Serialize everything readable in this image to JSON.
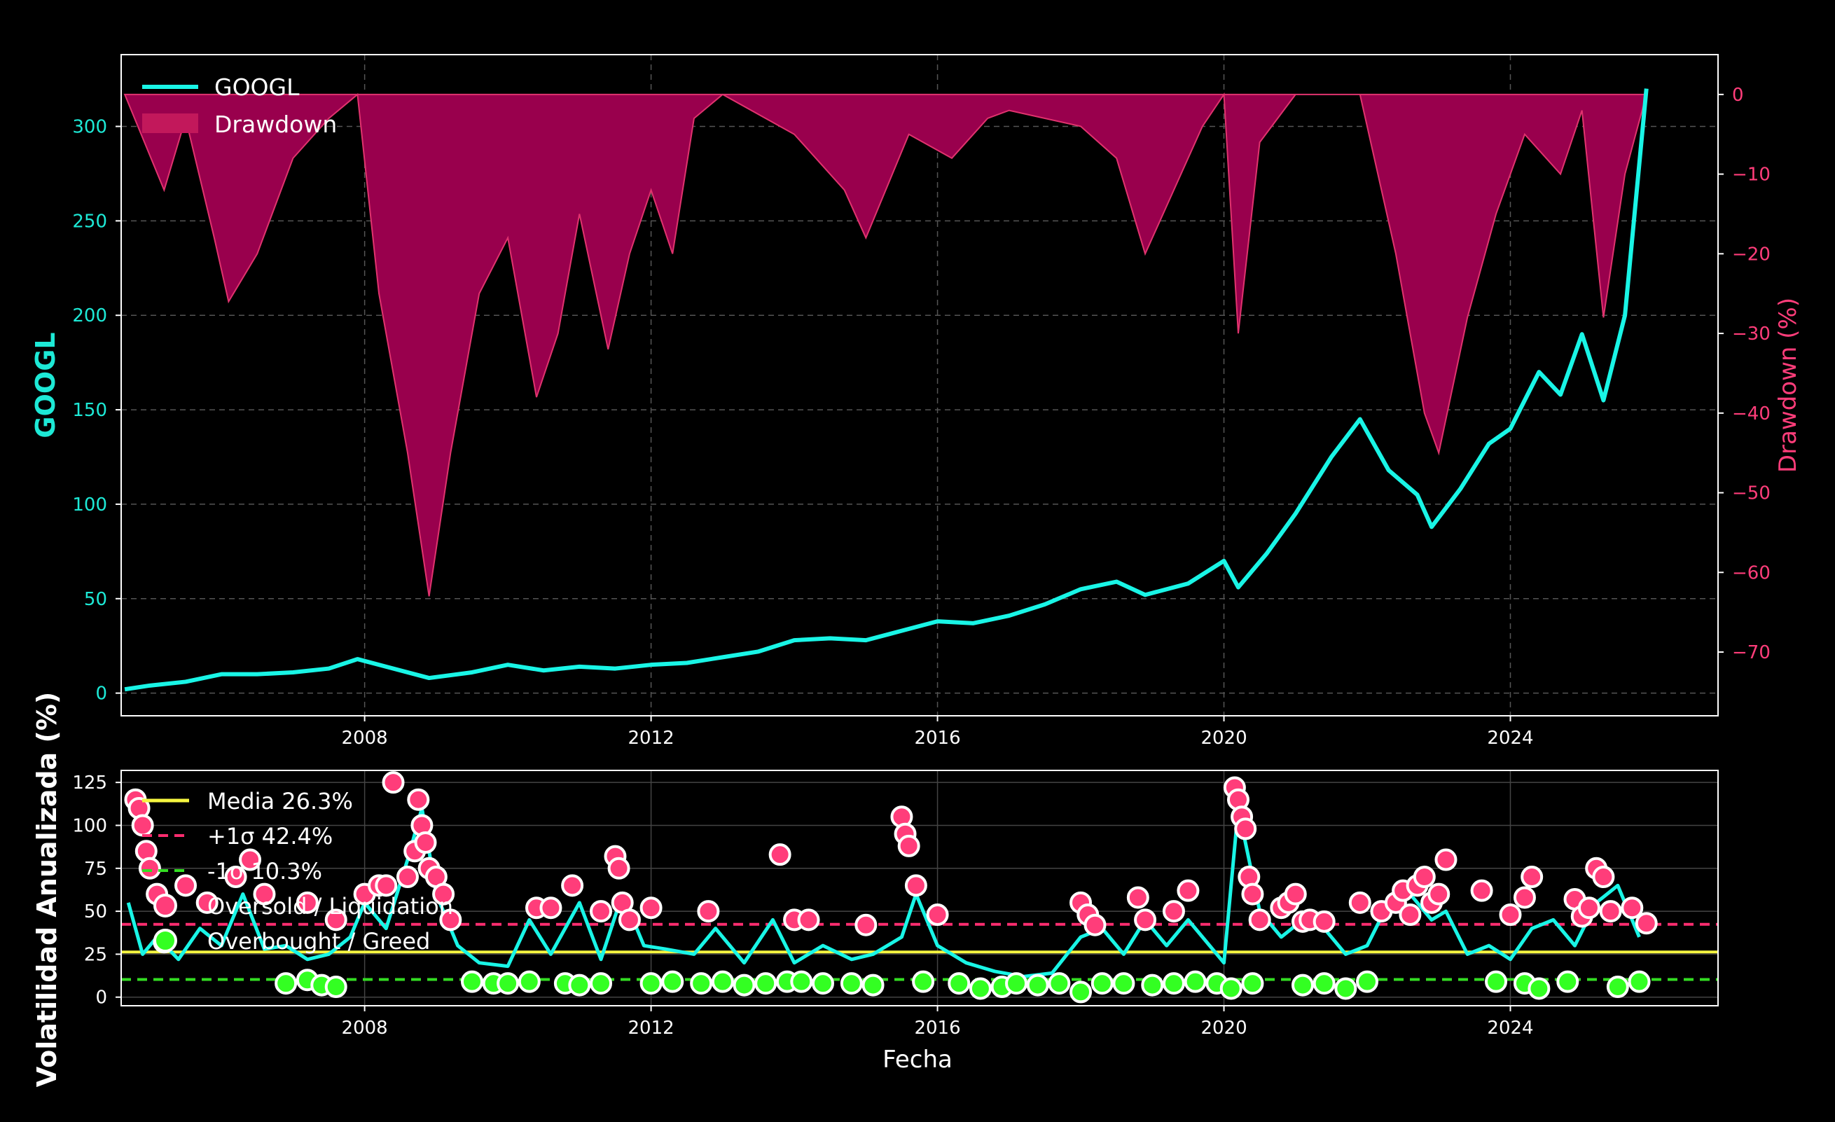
{
  "colors": {
    "background": "#000000",
    "price_line": "#19f5e6",
    "drawdown_fill": "#99004d",
    "drawdown_line": "#e0336e",
    "axis_frame": "#ffffff",
    "grid": "#555555",
    "mean_line": "#f5f540",
    "plus_sigma_line": "#ff2d6f",
    "minus_sigma_line": "#33dd22",
    "oversold_marker": "#ff3d7a",
    "overbought_marker": "#33ff22",
    "left_axis_label": "#1de9d6",
    "right_axis_label": "#ff3d7a"
  },
  "chart_data": [
    {
      "type": "line",
      "title": "",
      "xlabel": "",
      "ylabel": "GOOGL",
      "y2label": "Drawdown (%)",
      "xlim": [
        2004.6,
        2026.9
      ],
      "ylim": [
        -12,
        338
      ],
      "y2lim": [
        -78,
        5
      ],
      "x_ticks": [
        "2008",
        "2012",
        "2016",
        "2020",
        "2024"
      ],
      "y_ticks": [
        "0",
        "50",
        "100",
        "150",
        "200",
        "250",
        "300"
      ],
      "y2_ticks": [
        "0",
        "−10",
        "−20",
        "−30",
        "−40",
        "−50",
        "−60",
        "−70"
      ],
      "legend": {
        "position": "top-left",
        "entries": [
          "GOOGL",
          "Drawdown"
        ]
      },
      "grid": true,
      "series": [
        {
          "name": "GOOGL",
          "x": [
            2004.65,
            2005.0,
            2005.5,
            2006.0,
            2006.5,
            2007.0,
            2007.5,
            2007.9,
            2008.3,
            2008.9,
            2009.5,
            2010.0,
            2010.5,
            2011.0,
            2011.5,
            2012.0,
            2012.5,
            2013.0,
            2013.5,
            2014.0,
            2014.5,
            2015.0,
            2015.5,
            2016.0,
            2016.5,
            2017.0,
            2017.5,
            2018.0,
            2018.5,
            2018.9,
            2019.5,
            2020.0,
            2020.2,
            2020.6,
            2021.0,
            2021.5,
            2021.9,
            2022.3,
            2022.7,
            2022.9,
            2023.3,
            2023.7,
            2024.0,
            2024.4,
            2024.7,
            2025.0,
            2025.3,
            2025.6,
            2025.9
          ],
          "values": [
            2,
            4,
            6,
            10,
            10,
            11,
            13,
            18,
            14,
            8,
            11,
            15,
            12,
            14,
            13,
            15,
            16,
            19,
            22,
            28,
            29,
            28,
            33,
            38,
            37,
            41,
            47,
            55,
            59,
            52,
            58,
            70,
            56,
            74,
            95,
            125,
            145,
            118,
            105,
            88,
            108,
            132,
            140,
            170,
            158,
            190,
            155,
            200,
            320
          ]
        },
        {
          "name": "Drawdown",
          "x": [
            2004.65,
            2005.2,
            2005.5,
            2005.9,
            2006.1,
            2006.5,
            2007.0,
            2007.5,
            2007.9,
            2008.2,
            2008.6,
            2008.9,
            2009.2,
            2009.6,
            2010.0,
            2010.4,
            2010.7,
            2011.0,
            2011.4,
            2011.7,
            2012.0,
            2012.3,
            2012.6,
            2013.0,
            2014.0,
            2014.7,
            2015.0,
            2015.6,
            2016.2,
            2016.7,
            2017.0,
            2018.0,
            2018.5,
            2018.9,
            2019.3,
            2019.7,
            2020.0,
            2020.2,
            2020.5,
            2021.0,
            2021.9,
            2022.4,
            2022.8,
            2023.0,
            2023.4,
            2023.8,
            2024.2,
            2024.7,
            2025.0,
            2025.3,
            2025.6,
            2025.9
          ],
          "values": [
            0,
            -12,
            -3,
            -18,
            -26,
            -20,
            -8,
            -3,
            0,
            -25,
            -45,
            -63,
            -45,
            -25,
            -18,
            -38,
            -30,
            -15,
            -32,
            -20,
            -12,
            -20,
            -3,
            0,
            -5,
            -12,
            -18,
            -5,
            -8,
            -3,
            -2,
            -4,
            -8,
            -20,
            -12,
            -4,
            0,
            -30,
            -6,
            0,
            0,
            -20,
            -40,
            -45,
            -28,
            -15,
            -5,
            -10,
            -2,
            -28,
            -10,
            0
          ]
        }
      ]
    },
    {
      "type": "scatter",
      "title": "",
      "xlabel": "Fecha",
      "ylabel": "Volatilidad Anualizada (%)",
      "xlim": [
        2004.6,
        2026.9
      ],
      "ylim": [
        -5,
        132
      ],
      "x_ticks": [
        "2008",
        "2012",
        "2016",
        "2020",
        "2024"
      ],
      "y_ticks": [
        "0",
        "25",
        "50",
        "75",
        "100",
        "125"
      ],
      "legend": {
        "position": "top-left",
        "entries": [
          "Media 26.3%",
          "+1σ 42.4%",
          "-1σ 10.3%",
          "Oversold / Liquidation",
          "Overbought / Greed"
        ]
      },
      "grid": true,
      "reference_lines": [
        {
          "name": "Media 26.3%",
          "value": 26.3,
          "style": "solid"
        },
        {
          "name": "+1σ 42.4%",
          "value": 42.4,
          "style": "dashed"
        },
        {
          "name": "-1σ 10.3%",
          "value": 10.3,
          "style": "dashed"
        }
      ],
      "series": [
        {
          "name": "Volatilidad",
          "x": [
            2004.7,
            2004.9,
            2005.1,
            2005.4,
            2005.7,
            2006.0,
            2006.3,
            2006.6,
            2006.9,
            2007.2,
            2007.5,
            2007.8,
            2008.0,
            2008.3,
            2008.6,
            2008.8,
            2009.0,
            2009.3,
            2009.6,
            2010.0,
            2010.3,
            2010.6,
            2011.0,
            2011.3,
            2011.6,
            2011.9,
            2012.2,
            2012.6,
            2012.9,
            2013.3,
            2013.7,
            2014.0,
            2014.4,
            2014.8,
            2015.1,
            2015.5,
            2015.7,
            2016.0,
            2016.4,
            2016.8,
            2017.2,
            2017.6,
            2018.0,
            2018.3,
            2018.6,
            2018.9,
            2019.2,
            2019.5,
            2019.8,
            2020.0,
            2020.2,
            2020.5,
            2020.8,
            2021.1,
            2021.4,
            2021.7,
            2022.0,
            2022.3,
            2022.6,
            2022.9,
            2023.1,
            2023.4,
            2023.7,
            2024.0,
            2024.3,
            2024.6,
            2024.9,
            2025.2,
            2025.5,
            2025.8
          ],
          "values": [
            55,
            25,
            35,
            22,
            40,
            30,
            60,
            28,
            30,
            22,
            25,
            35,
            55,
            40,
            80,
            110,
            60,
            30,
            20,
            18,
            45,
            25,
            55,
            22,
            60,
            30,
            28,
            25,
            40,
            20,
            45,
            20,
            30,
            22,
            25,
            35,
            60,
            30,
            20,
            15,
            12,
            14,
            35,
            40,
            25,
            45,
            30,
            45,
            30,
            20,
            110,
            50,
            35,
            45,
            40,
            25,
            30,
            55,
            60,
            45,
            50,
            25,
            30,
            22,
            40,
            45,
            30,
            55,
            65,
            35
          ]
        },
        {
          "name": "Oversold / Liquidation",
          "x": [
            2004.8,
            2004.85,
            2004.9,
            2004.95,
            2005.0,
            2005.1,
            2005.5,
            2005.8,
            2006.2,
            2006.4,
            2006.6,
            2007.2,
            2007.6,
            2008.0,
            2008.2,
            2008.3,
            2008.4,
            2008.6,
            2008.7,
            2008.75,
            2008.8,
            2008.85,
            2008.9,
            2009.0,
            2009.1,
            2009.2,
            2010.4,
            2010.6,
            2010.9,
            2011.3,
            2011.5,
            2011.55,
            2011.6,
            2011.7,
            2012.0,
            2012.8,
            2013.8,
            2014.0,
            2014.2,
            2015.0,
            2015.5,
            2015.55,
            2015.6,
            2015.7,
            2016.0,
            2018.0,
            2018.1,
            2018.2,
            2018.8,
            2018.9,
            2019.3,
            2019.5,
            2020.15,
            2020.2,
            2020.25,
            2020.3,
            2020.35,
            2020.4,
            2020.5,
            2020.8,
            2020.9,
            2021.0,
            2021.1,
            2021.2,
            2021.4,
            2021.9,
            2022.2,
            2022.4,
            2022.5,
            2022.6,
            2022.7,
            2022.8,
            2022.9,
            2023.0,
            2023.1,
            2023.6,
            2024.0,
            2024.2,
            2024.3,
            2024.9,
            2025.0,
            2025.1,
            2025.2,
            2025.3,
            2025.4,
            2025.7,
            2025.9
          ],
          "values": [
            115,
            110,
            100,
            85,
            75,
            60,
            65,
            55,
            70,
            80,
            60,
            55,
            45,
            60,
            65,
            65,
            125,
            70,
            85,
            115,
            100,
            90,
            75,
            70,
            60,
            45,
            52,
            52,
            65,
            50,
            82,
            75,
            55,
            45,
            52,
            50,
            83,
            45,
            45,
            42,
            105,
            95,
            88,
            65,
            48,
            55,
            48,
            42,
            58,
            45,
            50,
            62,
            122,
            115,
            105,
            98,
            70,
            60,
            45,
            52,
            55,
            60,
            44,
            45,
            44,
            55,
            50,
            55,
            62,
            48,
            65,
            70,
            55,
            60,
            80,
            62,
            48,
            58,
            70,
            57,
            47,
            52,
            75,
            70,
            50,
            52,
            43
          ]
        },
        {
          "name": "Overbought / Greed",
          "x": [
            2005.2,
            2006.9,
            2007.2,
            2007.4,
            2007.6,
            2009.5,
            2009.8,
            2010.0,
            2010.3,
            2010.8,
            2011.0,
            2011.3,
            2012.0,
            2012.3,
            2012.7,
            2013.0,
            2013.3,
            2013.6,
            2013.9,
            2014.1,
            2014.4,
            2014.8,
            2015.1,
            2015.8,
            2016.3,
            2016.6,
            2016.9,
            2017.1,
            2017.4,
            2017.7,
            2018.0,
            2018.3,
            2018.6,
            2019.0,
            2019.3,
            2019.6,
            2019.9,
            2020.1,
            2020.4,
            2021.1,
            2021.4,
            2021.7,
            2022.0,
            2023.8,
            2024.2,
            2024.4,
            2024.8,
            2025.5,
            2025.8
          ],
          "values": [
            32,
            8,
            10,
            7,
            6,
            9,
            8,
            8,
            9,
            8,
            7,
            8,
            8,
            9,
            8,
            9,
            7,
            8,
            9,
            9,
            8,
            8,
            7,
            9,
            8,
            5,
            6,
            8,
            7,
            8,
            3,
            8,
            8,
            7,
            8,
            9,
            8,
            5,
            8,
            7,
            8,
            5,
            9,
            9,
            8,
            5,
            9,
            6,
            9
          ]
        }
      ]
    }
  ]
}
